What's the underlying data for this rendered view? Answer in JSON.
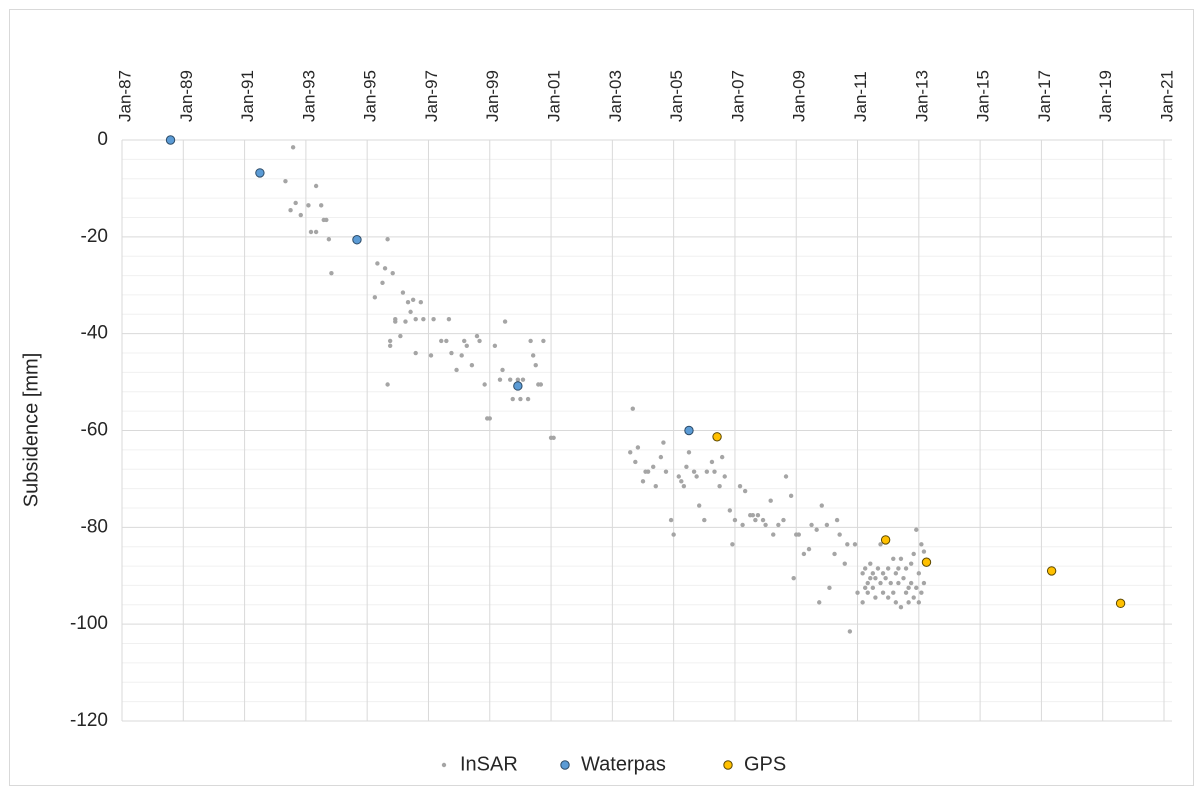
{
  "chart_data": {
    "type": "scatter",
    "y_label": "Subsidence [mm]",
    "xlim": [
      "1987-01",
      "2021-01"
    ],
    "xticks": [
      {
        "value": "1987-01",
        "label": "Jan-87"
      },
      {
        "value": "1989-01",
        "label": "Jan-89"
      },
      {
        "value": "1991-01",
        "label": "Jan-91"
      },
      {
        "value": "1993-01",
        "label": "Jan-93"
      },
      {
        "value": "1995-01",
        "label": "Jan-95"
      },
      {
        "value": "1997-01",
        "label": "Jan-97"
      },
      {
        "value": "1999-01",
        "label": "Jan-99"
      },
      {
        "value": "2001-01",
        "label": "Jan-01"
      },
      {
        "value": "2003-01",
        "label": "Jan-03"
      },
      {
        "value": "2005-01",
        "label": "Jan-05"
      },
      {
        "value": "2007-01",
        "label": "Jan-07"
      },
      {
        "value": "2009-01",
        "label": "Jan-09"
      },
      {
        "value": "2011-01",
        "label": "Jan-11"
      },
      {
        "value": "2013-01",
        "label": "Jan-13"
      },
      {
        "value": "2015-01",
        "label": "Jan-15"
      },
      {
        "value": "2017-01",
        "label": "Jan-17"
      },
      {
        "value": "2019-01",
        "label": "Jan-19"
      },
      {
        "value": "2021-01",
        "label": "Jan-21"
      }
    ],
    "ylim": [
      -120,
      0
    ],
    "yticks": [
      0,
      -20,
      -40,
      -60,
      -80,
      -100,
      -120
    ],
    "grid": true,
    "legend": "bottom",
    "series": [
      {
        "name": "InSAR",
        "color": "#a5a5a5",
        "x": [
          "1992-08",
          "1992-05",
          "1992-07",
          "1992-09",
          "1992-11",
          "1993-02",
          "1993-03",
          "1993-05",
          "1993-05",
          "1993-07",
          "1993-08",
          "1993-09",
          "1993-10",
          "1993-11",
          "1995-04",
          "1995-05",
          "1995-07",
          "1995-08",
          "1995-09",
          "1995-09",
          "1995-10",
          "1995-10",
          "1995-11",
          "1995-12",
          "1995-12",
          "1996-02",
          "1996-03",
          "1996-04",
          "1996-05",
          "1996-06",
          "1996-07",
          "1996-08",
          "1996-08",
          "1996-10",
          "1996-11",
          "1997-02",
          "1997-03",
          "1997-06",
          "1997-08",
          "1997-09",
          "1997-10",
          "1997-12",
          "1998-02",
          "1998-03",
          "1998-04",
          "1998-06",
          "1998-08",
          "1998-09",
          "1998-11",
          "1998-12",
          "1999-01",
          "1999-03",
          "1999-05",
          "1999-06",
          "1999-07",
          "1999-09",
          "1999-10",
          "1999-12",
          "2000-01",
          "2000-02",
          "2000-04",
          "2000-05",
          "2000-06",
          "2000-07",
          "2000-08",
          "2000-09",
          "2000-10",
          "2001-01",
          "2001-02",
          "2003-09",
          "2003-08",
          "2003-10",
          "2003-11",
          "2004-01",
          "2004-02",
          "2004-03",
          "2004-05",
          "2004-06",
          "2004-08",
          "2004-09",
          "2004-10",
          "2004-12",
          "2005-01",
          "2005-03",
          "2005-04",
          "2005-05",
          "2005-06",
          "2005-07",
          "2005-09",
          "2005-10",
          "2005-11",
          "2006-01",
          "2006-02",
          "2006-04",
          "2006-05",
          "2006-07",
          "2006-08",
          "2006-09",
          "2006-11",
          "2006-12",
          "2007-01",
          "2007-03",
          "2007-04",
          "2007-05",
          "2007-07",
          "2007-08",
          "2007-09",
          "2007-10",
          "2007-12",
          "2008-01",
          "2008-03",
          "2008-04",
          "2008-06",
          "2008-08",
          "2008-09",
          "2008-11",
          "2008-12",
          "2009-01",
          "2009-02",
          "2009-04",
          "2009-06",
          "2009-07",
          "2009-09",
          "2009-10",
          "2009-11",
          "2010-01",
          "2010-02",
          "2010-04",
          "2010-05",
          "2010-06",
          "2010-08",
          "2010-09",
          "2010-10",
          "2010-12",
          "2011-01",
          "2011-03",
          "2011-03",
          "2011-04",
          "2011-04",
          "2011-05",
          "2011-05",
          "2011-06",
          "2011-06",
          "2011-07",
          "2011-07",
          "2011-08",
          "2011-08",
          "2011-09",
          "2011-10",
          "2011-10",
          "2011-11",
          "2011-11",
          "2011-12",
          "2012-01",
          "2012-01",
          "2012-02",
          "2012-03",
          "2012-03",
          "2012-04",
          "2012-04",
          "2012-05",
          "2012-05",
          "2012-06",
          "2012-06",
          "2012-07",
          "2012-08",
          "2012-08",
          "2012-09",
          "2012-09",
          "2012-10",
          "2012-10",
          "2012-11",
          "2012-11",
          "2012-12",
          "2012-12",
          "2013-01",
          "2013-01",
          "2013-02",
          "2013-02",
          "2013-03",
          "2013-03"
        ],
        "values": [
          -1.5,
          -8.5,
          -14.5,
          -13,
          -15.5,
          -13.5,
          -19,
          -19,
          -9.5,
          -13.5,
          -16.5,
          -16.5,
          -20.5,
          -27.5,
          -32.5,
          -25.5,
          -29.5,
          -26.5,
          -20.5,
          -50.5,
          -41.5,
          -42.5,
          -27.5,
          -37,
          -37.5,
          -40.5,
          -31.5,
          -37.5,
          -33.5,
          -35.5,
          -33,
          -44,
          -37,
          -33.5,
          -37,
          -44.5,
          -37,
          -41.5,
          -41.5,
          -37,
          -44,
          -47.5,
          -44.5,
          -41.5,
          -42.5,
          -46.5,
          -40.5,
          -41.5,
          -50.5,
          -57.5,
          -57.5,
          -42.5,
          -49.5,
          -47.5,
          -37.5,
          -49.5,
          -53.5,
          -49.5,
          -53.5,
          -49.5,
          -53.5,
          -41.5,
          -44.5,
          -46.5,
          -50.5,
          -50.5,
          -41.5,
          -61.5,
          -61.5,
          -55.5,
          -64.5,
          -66.5,
          -63.5,
          -70.5,
          -68.5,
          -68.5,
          -67.5,
          -71.5,
          -65.5,
          -62.5,
          -68.5,
          -78.5,
          -81.5,
          -69.5,
          -70.5,
          -71.5,
          -67.5,
          -64.5,
          -68.5,
          -69.5,
          -75.5,
          -78.5,
          -68.5,
          -66.5,
          -68.5,
          -71.5,
          -65.5,
          -69.5,
          -76.5,
          -83.5,
          -78.5,
          -71.5,
          -79.5,
          -72.5,
          -77.5,
          -77.5,
          -78.5,
          -77.5,
          -78.5,
          -79.5,
          -74.5,
          -81.5,
          -79.5,
          -78.5,
          -69.5,
          -73.5,
          -90.5,
          -81.5,
          -81.5,
          -85.5,
          -84.5,
          -79.5,
          -80.5,
          -95.5,
          -75.5,
          -79.5,
          -92.5,
          -85.5,
          -78.5,
          -81.5,
          -87.5,
          -83.5,
          -101.5,
          -83.5,
          -93.5,
          -89.5,
          -95.5,
          -92.5,
          -88.5,
          -91.5,
          -93.5,
          -87.5,
          -90.5,
          -89.5,
          -92.5,
          -90.5,
          -94.5,
          -88.5,
          -91.5,
          -83.5,
          -89.5,
          -93.5,
          -90.5,
          -94.5,
          -88.5,
          -91.5,
          -86.5,
          -93.5,
          -89.5,
          -95.5,
          -88.5,
          -91.5,
          -96.5,
          -86.5,
          -90.5,
          -93.5,
          -88.5,
          -92.5,
          -95.5,
          -87.5,
          -91.5,
          -94.5,
          -85.5,
          -80.5,
          -92.5,
          -89.5,
          -95.5,
          -83.5,
          -93.5,
          -91.5,
          -85
        ]
      },
      {
        "name": "Waterpas",
        "color": "#5b9bd5",
        "x": [
          "1988-08",
          "1991-07",
          "1994-09",
          "1999-12",
          "2005-07"
        ],
        "values": [
          0,
          -6.8,
          -20.6,
          -50.8,
          -60
        ]
      },
      {
        "name": "GPS",
        "color": "#ffc000",
        "x": [
          "2006-06",
          "2011-12",
          "2013-04",
          "2017-05",
          "2019-08"
        ],
        "values": [
          -61.3,
          -82.6,
          -87.2,
          -89,
          -95.7
        ]
      }
    ]
  }
}
